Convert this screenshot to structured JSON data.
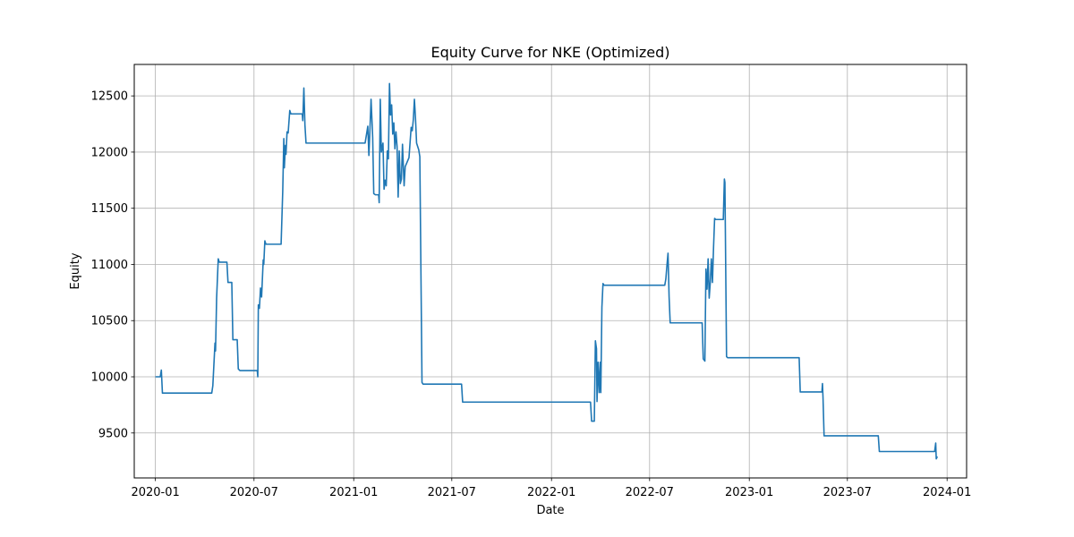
{
  "chart_data": {
    "type": "line",
    "title": "Equity Curve for NKE (Optimized)",
    "xlabel": "Date",
    "ylabel": "Equity",
    "xlim": [
      "2019-11-23",
      "2024-02-06"
    ],
    "ylim": [
      9100,
      12780
    ],
    "x_ticks": [
      "2020-01",
      "2020-07",
      "2021-01",
      "2021-07",
      "2022-01",
      "2022-07",
      "2023-01",
      "2023-07",
      "2024-01"
    ],
    "y_ticks": [
      9500,
      10000,
      10500,
      11000,
      11500,
      12000,
      12500
    ],
    "grid": true,
    "line_color": "#1f77b4",
    "series": [
      {
        "name": "",
        "points": [
          [
            "2020-01-01",
            10000
          ],
          [
            "2020-01-10",
            10000
          ],
          [
            "2020-01-12",
            10060
          ],
          [
            "2020-01-14",
            9855
          ],
          [
            "2020-04-14",
            9855
          ],
          [
            "2020-04-16",
            9920
          ],
          [
            "2020-04-20",
            10300
          ],
          [
            "2020-04-21",
            10230
          ],
          [
            "2020-04-23",
            10700
          ],
          [
            "2020-04-26",
            11050
          ],
          [
            "2020-04-28",
            11020
          ],
          [
            "2020-05-12",
            11020
          ],
          [
            "2020-05-14",
            10840
          ],
          [
            "2020-05-21",
            10840
          ],
          [
            "2020-05-23",
            10330
          ],
          [
            "2020-05-31",
            10330
          ],
          [
            "2020-06-02",
            10070
          ],
          [
            "2020-06-05",
            10055
          ],
          [
            "2020-07-07",
            10055
          ],
          [
            "2020-07-08",
            10000
          ],
          [
            "2020-07-09",
            10640
          ],
          [
            "2020-07-11",
            10610
          ],
          [
            "2020-07-13",
            10790
          ],
          [
            "2020-07-15",
            10710
          ],
          [
            "2020-07-18",
            11040
          ],
          [
            "2020-07-19",
            11000
          ],
          [
            "2020-07-21",
            11210
          ],
          [
            "2020-07-23",
            11180
          ],
          [
            "2020-08-20",
            11180
          ],
          [
            "2020-08-23",
            11650
          ],
          [
            "2020-08-25",
            12120
          ],
          [
            "2020-08-26",
            11860
          ],
          [
            "2020-08-28",
            12060
          ],
          [
            "2020-08-29",
            11980
          ],
          [
            "2020-08-31",
            12180
          ],
          [
            "2020-09-02",
            12170
          ],
          [
            "2020-09-05",
            12370
          ],
          [
            "2020-09-07",
            12340
          ],
          [
            "2020-09-28",
            12340
          ],
          [
            "2020-09-29",
            12280
          ],
          [
            "2020-10-01",
            12570
          ],
          [
            "2020-10-03",
            12240
          ],
          [
            "2020-10-05",
            12080
          ],
          [
            "2021-01-22",
            12080
          ],
          [
            "2021-01-25",
            12170
          ],
          [
            "2021-01-27",
            12230
          ],
          [
            "2021-01-29",
            11970
          ],
          [
            "2021-01-31",
            12210
          ],
          [
            "2021-02-02",
            12470
          ],
          [
            "2021-02-05",
            12130
          ],
          [
            "2021-02-07",
            11630
          ],
          [
            "2021-02-10",
            11620
          ],
          [
            "2021-02-16",
            11620
          ],
          [
            "2021-02-17",
            11550
          ],
          [
            "2021-02-19",
            12470
          ],
          [
            "2021-02-21",
            12000
          ],
          [
            "2021-02-24",
            12080
          ],
          [
            "2021-02-26",
            11670
          ],
          [
            "2021-02-28",
            11750
          ],
          [
            "2021-03-02",
            11700
          ],
          [
            "2021-03-04",
            12010
          ],
          [
            "2021-03-06",
            11940
          ],
          [
            "2021-03-08",
            12610
          ],
          [
            "2021-03-10",
            12330
          ],
          [
            "2021-03-12",
            12420
          ],
          [
            "2021-03-14",
            12160
          ],
          [
            "2021-03-16",
            12260
          ],
          [
            "2021-03-18",
            12030
          ],
          [
            "2021-03-20",
            12180
          ],
          [
            "2021-03-22",
            12050
          ],
          [
            "2021-03-24",
            11600
          ],
          [
            "2021-03-26",
            12010
          ],
          [
            "2021-03-28",
            11720
          ],
          [
            "2021-03-30",
            11760
          ],
          [
            "2021-04-01",
            12070
          ],
          [
            "2021-04-04",
            11700
          ],
          [
            "2021-04-06",
            11870
          ],
          [
            "2021-04-13",
            11950
          ],
          [
            "2021-04-17",
            12220
          ],
          [
            "2021-04-19",
            12190
          ],
          [
            "2021-04-21",
            12290
          ],
          [
            "2021-04-23",
            12470
          ],
          [
            "2021-04-25",
            12300
          ],
          [
            "2021-04-27",
            12080
          ],
          [
            "2021-05-01",
            12020
          ],
          [
            "2021-05-03",
            11960
          ],
          [
            "2021-05-07",
            9950
          ],
          [
            "2021-05-09",
            9935
          ],
          [
            "2021-07-19",
            9935
          ],
          [
            "2021-07-21",
            9775
          ],
          [
            "2022-03-14",
            9775
          ],
          [
            "2022-03-16",
            9605
          ],
          [
            "2022-03-21",
            9605
          ],
          [
            "2022-03-23",
            10320
          ],
          [
            "2022-03-25",
            10250
          ],
          [
            "2022-03-26",
            9780
          ],
          [
            "2022-03-28",
            10130
          ],
          [
            "2022-03-30",
            9860
          ],
          [
            "2022-04-01",
            10130
          ],
          [
            "2022-04-02",
            9860
          ],
          [
            "2022-04-04",
            10620
          ],
          [
            "2022-04-06",
            10830
          ],
          [
            "2022-04-08",
            10815
          ],
          [
            "2022-07-29",
            10815
          ],
          [
            "2022-07-31",
            10870
          ],
          [
            "2022-08-02",
            10990
          ],
          [
            "2022-08-04",
            11100
          ],
          [
            "2022-08-06",
            10710
          ],
          [
            "2022-08-08",
            10480
          ],
          [
            "2022-10-06",
            10480
          ],
          [
            "2022-10-08",
            10160
          ],
          [
            "2022-10-11",
            10140
          ],
          [
            "2022-10-13",
            10960
          ],
          [
            "2022-10-15",
            10780
          ],
          [
            "2022-10-17",
            11050
          ],
          [
            "2022-10-19",
            10700
          ],
          [
            "2022-10-21",
            10840
          ],
          [
            "2022-10-23",
            11050
          ],
          [
            "2022-10-25",
            10840
          ],
          [
            "2022-10-27",
            11150
          ],
          [
            "2022-10-29",
            11410
          ],
          [
            "2022-10-31",
            11400
          ],
          [
            "2022-11-14",
            11400
          ],
          [
            "2022-11-16",
            11760
          ],
          [
            "2022-11-17",
            11730
          ],
          [
            "2022-11-20",
            10180
          ],
          [
            "2022-11-22",
            10170
          ],
          [
            "2023-04-03",
            10170
          ],
          [
            "2023-04-05",
            9865
          ],
          [
            "2023-05-15",
            9865
          ],
          [
            "2023-05-16",
            9940
          ],
          [
            "2023-05-17",
            9820
          ],
          [
            "2023-05-19",
            9475
          ],
          [
            "2023-08-27",
            9475
          ],
          [
            "2023-08-29",
            9335
          ],
          [
            "2023-12-09",
            9335
          ],
          [
            "2023-12-11",
            9410
          ],
          [
            "2023-12-12",
            9270
          ],
          [
            "2023-12-14",
            9290
          ]
        ]
      }
    ]
  }
}
